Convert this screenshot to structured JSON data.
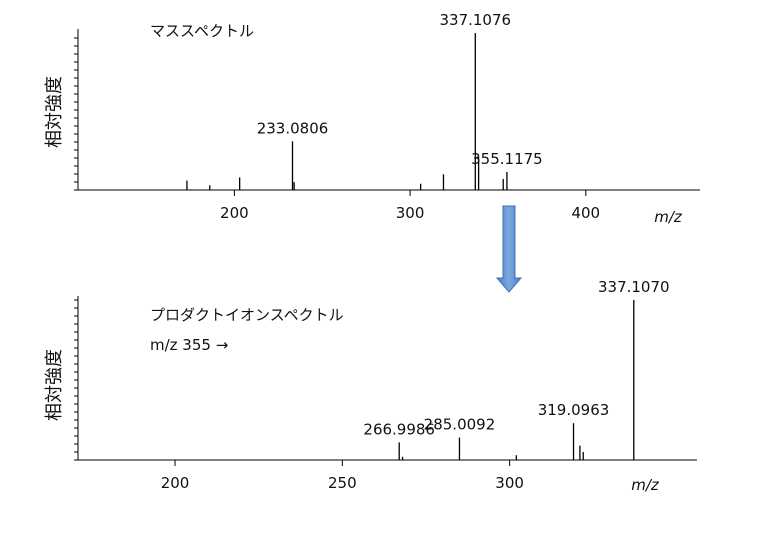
{
  "chart_data": [
    {
      "type": "spectrum",
      "annotation": "マススペクトル",
      "ylabel": "相対強度",
      "xlabel": "m/z",
      "color": "#000000",
      "x": [
        173,
        186,
        203,
        233.0806,
        234,
        306,
        319,
        337.1076,
        339,
        353,
        355.1175
      ],
      "values": [
        6,
        3,
        8,
        31,
        5,
        4,
        10,
        100,
        21,
        7,
        11.5
      ],
      "x_labels": [
        null,
        null,
        null,
        "233.0806",
        null,
        null,
        null,
        "337.1076",
        null,
        null,
        "355.1175"
      ],
      "xlim": [
        111,
        465
      ],
      "xticks": [
        200,
        300,
        400
      ],
      "ylim": [
        0,
        100
      ]
    },
    {
      "type": "spectrum",
      "annotation": "プロダクトイオンスペクトル",
      "precursor": "m/z 355 →",
      "ylabel": "相対強度",
      "xlabel": "m/z",
      "color": "#000000",
      "x": [
        266.9986,
        268,
        285.0092,
        302,
        319.0963,
        321,
        322,
        337.107
      ],
      "values": [
        11,
        2,
        14,
        3,
        23,
        9,
        5,
        100
      ],
      "x_labels": [
        "266.9986",
        null,
        "285.0092",
        null,
        "319.0963",
        null,
        null,
        "337.1070"
      ],
      "xlim": [
        171,
        356
      ],
      "xticks": [
        200,
        250,
        300
      ],
      "ylim": [
        0,
        100
      ]
    }
  ]
}
